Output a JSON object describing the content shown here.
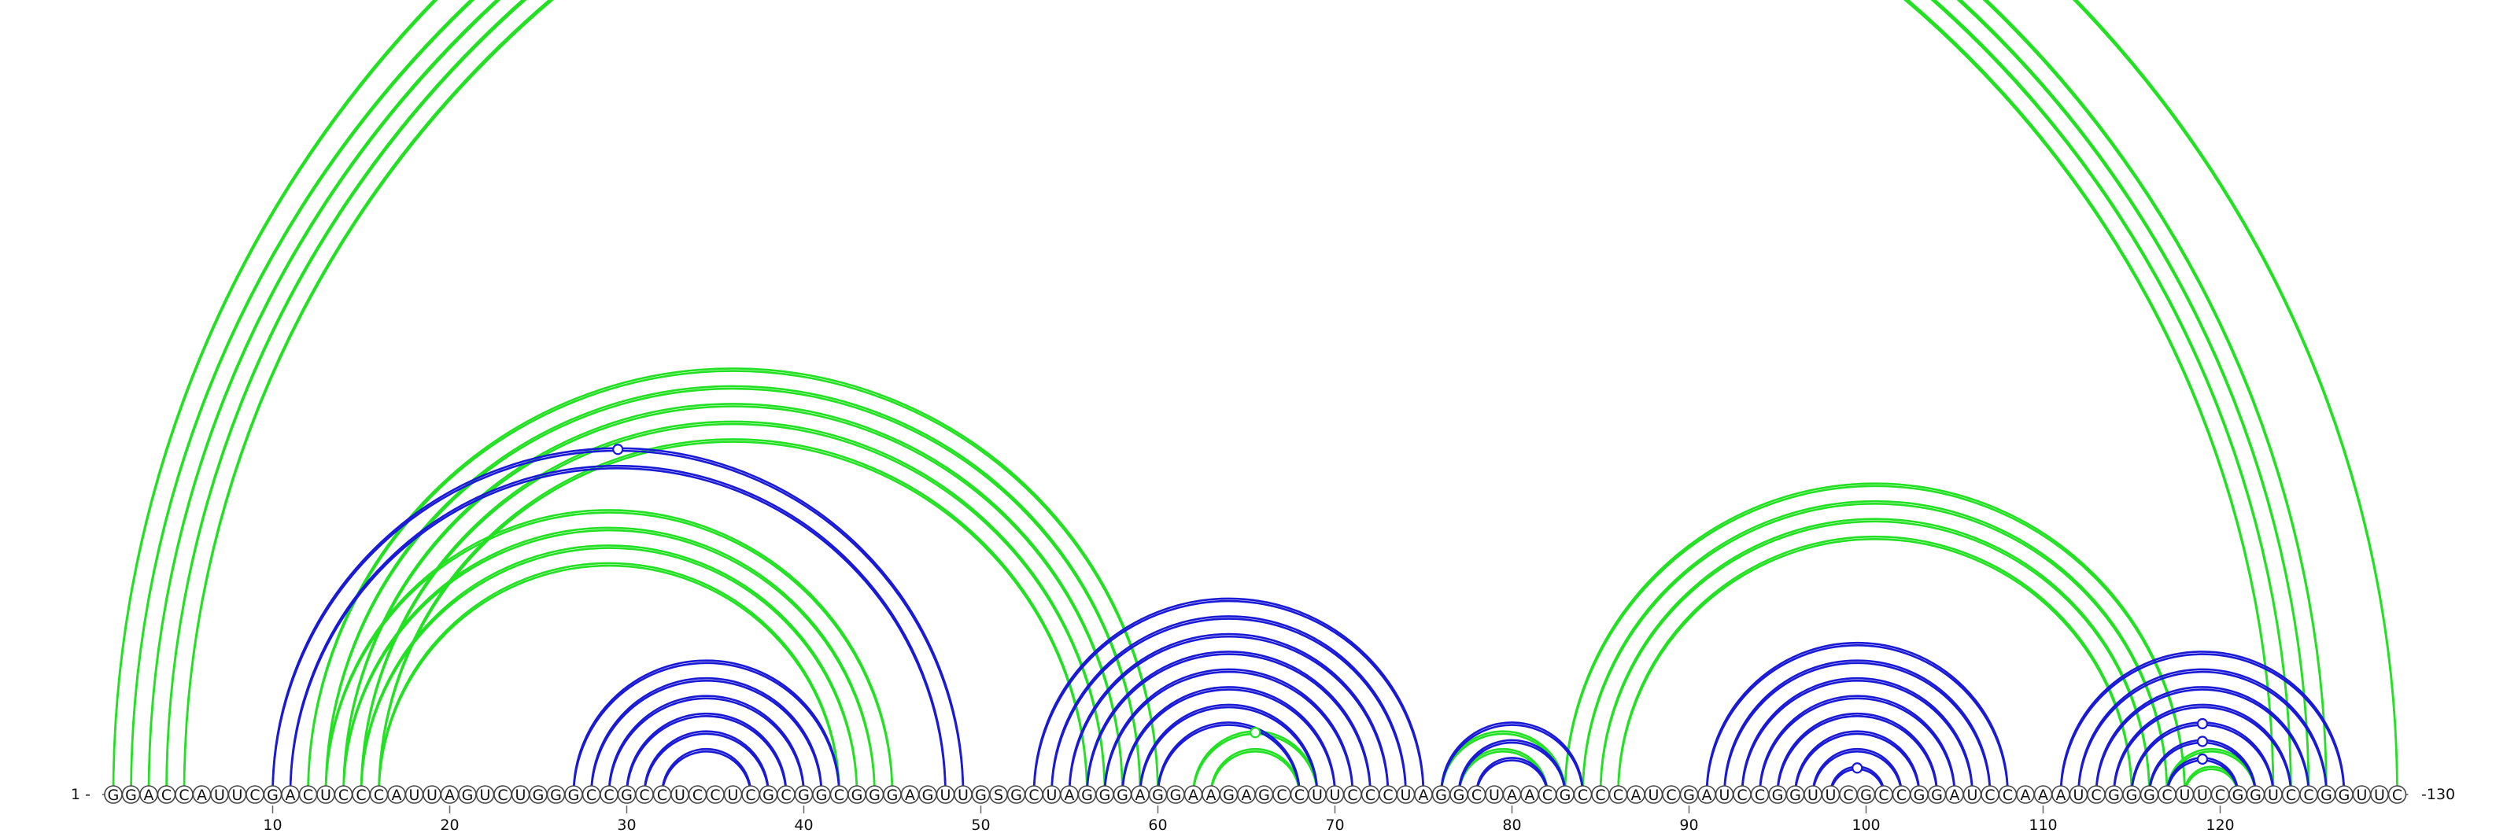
{
  "sequence": "GGACCAUUCGACUCCCAUUAGUCUGGGCCGCCUCCUCGCGGCGGGAGUUGSGCUAGGGAGGAAGAGCCUUCCCUAGGCUAACGCCCAUCGAUCCGGUUCGCCGGAUCCAAAUCGGGCUUCGGUCCGGUUC",
  "labels": {
    "start": "1 -",
    "end": "-130"
  },
  "ticks": [
    "10",
    "20",
    "30",
    "40",
    "50",
    "60",
    "70",
    "80",
    "90",
    "100",
    "110",
    "120"
  ],
  "colors": {
    "structure_a": "#1a1ad6",
    "structure_b": "#22e022"
  },
  "pairs": {
    "green": [
      [
        1,
        130
      ],
      [
        2,
        126
      ],
      [
        3,
        125
      ],
      [
        4,
        124
      ],
      [
        5,
        123
      ],
      [
        12,
        60
      ],
      [
        13,
        59
      ],
      [
        14,
        58
      ],
      [
        15,
        57
      ],
      [
        16,
        56
      ],
      [
        13,
        45
      ],
      [
        14,
        44
      ],
      [
        15,
        43
      ],
      [
        16,
        42
      ],
      [
        62,
        69
      ],
      [
        63,
        68
      ],
      [
        76,
        83
      ],
      [
        77,
        82
      ],
      [
        83,
        118
      ],
      [
        84,
        117
      ],
      [
        85,
        116
      ],
      [
        86,
        115
      ],
      [
        117,
        122
      ],
      [
        118,
        121
      ]
    ],
    "blue": [
      [
        10,
        49
      ],
      [
        11,
        48
      ],
      [
        27,
        42
      ],
      [
        28,
        41
      ],
      [
        29,
        40
      ],
      [
        30,
        39
      ],
      [
        31,
        38
      ],
      [
        32,
        37
      ],
      [
        53,
        75
      ],
      [
        54,
        74
      ],
      [
        55,
        73
      ],
      [
        56,
        72
      ],
      [
        57,
        71
      ],
      [
        58,
        70
      ],
      [
        59,
        69
      ],
      [
        60,
        68
      ],
      [
        76,
        84
      ],
      [
        77,
        83
      ],
      [
        78,
        82
      ],
      [
        91,
        108
      ],
      [
        92,
        107
      ],
      [
        93,
        106
      ],
      [
        94,
        105
      ],
      [
        95,
        104
      ],
      [
        96,
        103
      ],
      [
        97,
        102
      ],
      [
        98,
        101
      ],
      [
        111,
        127
      ],
      [
        112,
        126
      ],
      [
        113,
        125
      ],
      [
        114,
        124
      ],
      [
        115,
        123
      ],
      [
        116,
        122
      ],
      [
        117,
        121
      ]
    ]
  },
  "markers": {
    "blue": [
      [
        10,
        49
      ],
      [
        117,
        121
      ],
      [
        116,
        122
      ],
      [
        115,
        123
      ],
      [
        98,
        101
      ]
    ],
    "green": [
      [
        62,
        69
      ]
    ]
  }
}
